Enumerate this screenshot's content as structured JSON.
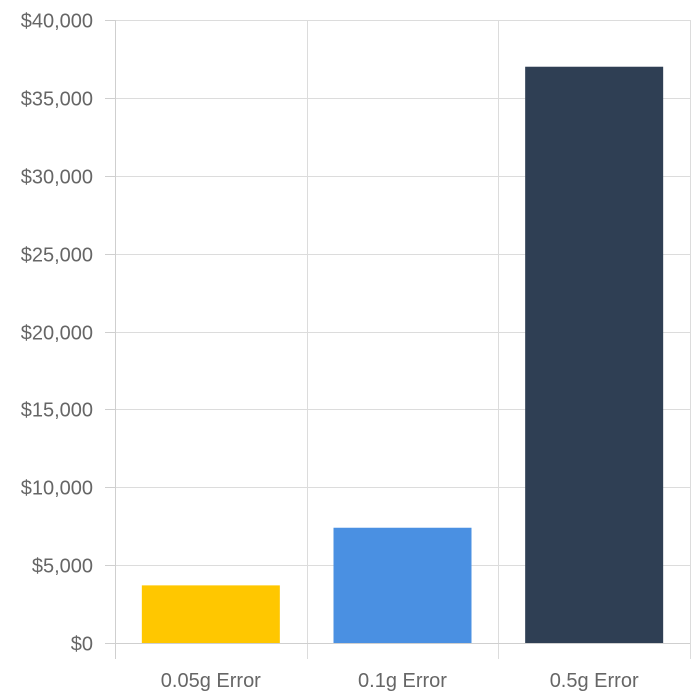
{
  "chart_data": {
    "type": "bar",
    "title": "",
    "xlabel": "",
    "ylabel": "",
    "categories": [
      "0.05g Error",
      "0.1g Error",
      "0.5g Error"
    ],
    "values": [
      3700,
      7400,
      37000
    ],
    "colors": [
      "#FFC700",
      "#4A90E2",
      "#2F3F54"
    ],
    "ylim": [
      0,
      40000
    ],
    "y_ticks": [
      0,
      5000,
      10000,
      15000,
      20000,
      25000,
      30000,
      35000,
      40000
    ],
    "y_tick_labels": [
      "$0",
      "$5,000",
      "$10,000",
      "$15,000",
      "$20,000",
      "$25,000",
      "$30,000",
      "$35,000",
      "$40,000"
    ],
    "grid": true,
    "legend": "none"
  }
}
